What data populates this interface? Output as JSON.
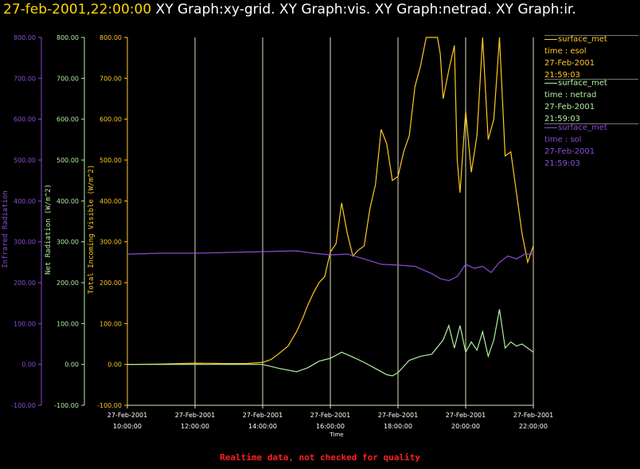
{
  "title": {
    "timestamp": "27-feb-2001,22:00:00",
    "graphs": " XY Graph:xy-grid.  XY Graph:vis.  XY Graph:netrad.  XY Graph:ir."
  },
  "colors": {
    "visible": "#ffc820",
    "netrad": "#b0f0a0",
    "ir": "#8c4cd8",
    "grid": "#e0e0c0",
    "background": "#000000",
    "footer": "#ff2020"
  },
  "legend": [
    {
      "name": "surface_met",
      "var": "time : esol",
      "date": "27-Feb-2001",
      "time": "21:59:03",
      "color": "#ffc820"
    },
    {
      "name": "surface_met",
      "var": "time : netrad",
      "date": "27-Feb-2001",
      "time": "21:59:03",
      "color": "#b0f0a0"
    },
    {
      "name": "surface_met",
      "var": "time : sol",
      "date": "27-Feb-2001",
      "time": "21:59:03",
      "color": "#8c4cd8"
    }
  ],
  "footer": "Realtime data, not checked for quality",
  "chart_data": {
    "type": "line",
    "xlabel": "Time",
    "x_ticks": [
      {
        "date": "27-Feb-2001",
        "time": "10:00:00"
      },
      {
        "date": "27-Feb-2001",
        "time": "12:00:00"
      },
      {
        "date": "27-Feb-2001",
        "time": "14:00:00"
      },
      {
        "date": "27-Feb-2001",
        "time": "16:00:00"
      },
      {
        "date": "27-Feb-2001",
        "time": "18:00:00"
      },
      {
        "date": "27-Feb-2001",
        "time": "20:00:00"
      },
      {
        "date": "27-Feb-2001",
        "time": "22:00:00"
      }
    ],
    "xlim": [
      "10:00",
      "22:00"
    ],
    "grid": true,
    "axes": [
      {
        "id": "ir",
        "label": "Infrared Radiation",
        "ticks": [
          "800.00",
          "700.00",
          "600.00",
          "500.00",
          "400.00",
          "300.00",
          "200.00",
          "100.00",
          "0.00",
          "-100.00"
        ],
        "ylim": [
          -100,
          800
        ],
        "color": "#8c4cd8"
      },
      {
        "id": "netrad",
        "label": "Net Radiation (W/m^2)",
        "ticks": [
          "800.00",
          "700.00",
          "600.00",
          "500.00",
          "400.00",
          "300.00",
          "200.00",
          "100.00",
          "0.00",
          "-100.00"
        ],
        "ylim": [
          -100,
          800
        ],
        "color": "#b0f0a0"
      },
      {
        "id": "vis",
        "label": "Total Incoming Visible (W/m^2)",
        "ticks": [
          "800.00",
          "700.00",
          "600.00",
          "500.00",
          "400.00",
          "300.00",
          "200.00",
          "100.00",
          "0.00",
          "-100.00"
        ],
        "ylim": [
          -100,
          800
        ],
        "color": "#ffc820"
      }
    ],
    "series": [
      {
        "id": "vis",
        "x": [
          "10:00",
          "11:00",
          "12:00",
          "13:00",
          "13:30",
          "14:00",
          "14:15",
          "14:30",
          "14:45",
          "15:00",
          "15:10",
          "15:20",
          "15:30",
          "15:40",
          "15:50",
          "16:00",
          "16:10",
          "16:20",
          "16:30",
          "16:40",
          "16:50",
          "17:00",
          "17:10",
          "17:20",
          "17:30",
          "17:40",
          "17:50",
          "18:00",
          "18:10",
          "18:20",
          "18:30",
          "18:40",
          "18:50",
          "19:00",
          "19:10",
          "19:15",
          "19:20",
          "19:30",
          "19:40",
          "19:45",
          "19:50",
          "20:00",
          "20:10",
          "20:20",
          "20:30",
          "20:40",
          "20:50",
          "21:00",
          "21:10",
          "21:20",
          "21:30",
          "21:40",
          "21:50",
          "22:00"
        ],
        "values": [
          0,
          1,
          3,
          2,
          2,
          5,
          12,
          28,
          45,
          80,
          110,
          145,
          175,
          200,
          215,
          275,
          295,
          395,
          320,
          265,
          280,
          290,
          380,
          440,
          575,
          540,
          450,
          460,
          520,
          560,
          680,
          730,
          800,
          800,
          800,
          760,
          650,
          720,
          780,
          500,
          420,
          620,
          470,
          560,
          800,
          550,
          600,
          800,
          510,
          520,
          420,
          320,
          250,
          290
        ]
      },
      {
        "id": "netrad",
        "x": [
          "10:00",
          "11:00",
          "12:00",
          "13:00",
          "14:00",
          "14:30",
          "15:00",
          "15:20",
          "15:30",
          "15:40",
          "16:00",
          "16:20",
          "16:40",
          "17:00",
          "17:20",
          "17:40",
          "17:50",
          "18:00",
          "18:20",
          "18:40",
          "19:00",
          "19:20",
          "19:30",
          "19:40",
          "19:50",
          "20:00",
          "20:10",
          "20:20",
          "20:30",
          "20:40",
          "20:50",
          "21:00",
          "21:10",
          "21:20",
          "21:30",
          "21:40",
          "21:50",
          "22:00"
        ],
        "values": [
          0,
          0,
          0,
          0,
          0,
          -10,
          -18,
          -8,
          0,
          8,
          15,
          30,
          18,
          5,
          -10,
          -25,
          -28,
          -20,
          10,
          20,
          25,
          60,
          95,
          40,
          95,
          30,
          55,
          35,
          80,
          20,
          60,
          135,
          40,
          55,
          45,
          50,
          40,
          30
        ]
      },
      {
        "id": "ir",
        "x": [
          "10:00",
          "11:00",
          "12:00",
          "13:00",
          "14:00",
          "15:00",
          "15:30",
          "16:00",
          "16:30",
          "17:00",
          "17:30",
          "18:00",
          "18:30",
          "19:00",
          "19:15",
          "19:30",
          "19:45",
          "20:00",
          "20:15",
          "20:30",
          "20:45",
          "21:00",
          "21:15",
          "21:30",
          "21:45",
          "22:00"
        ],
        "values": [
          270,
          272,
          272,
          274,
          276,
          278,
          272,
          268,
          270,
          258,
          245,
          243,
          240,
          222,
          210,
          205,
          215,
          245,
          235,
          240,
          225,
          250,
          265,
          258,
          270,
          270
        ]
      }
    ]
  }
}
